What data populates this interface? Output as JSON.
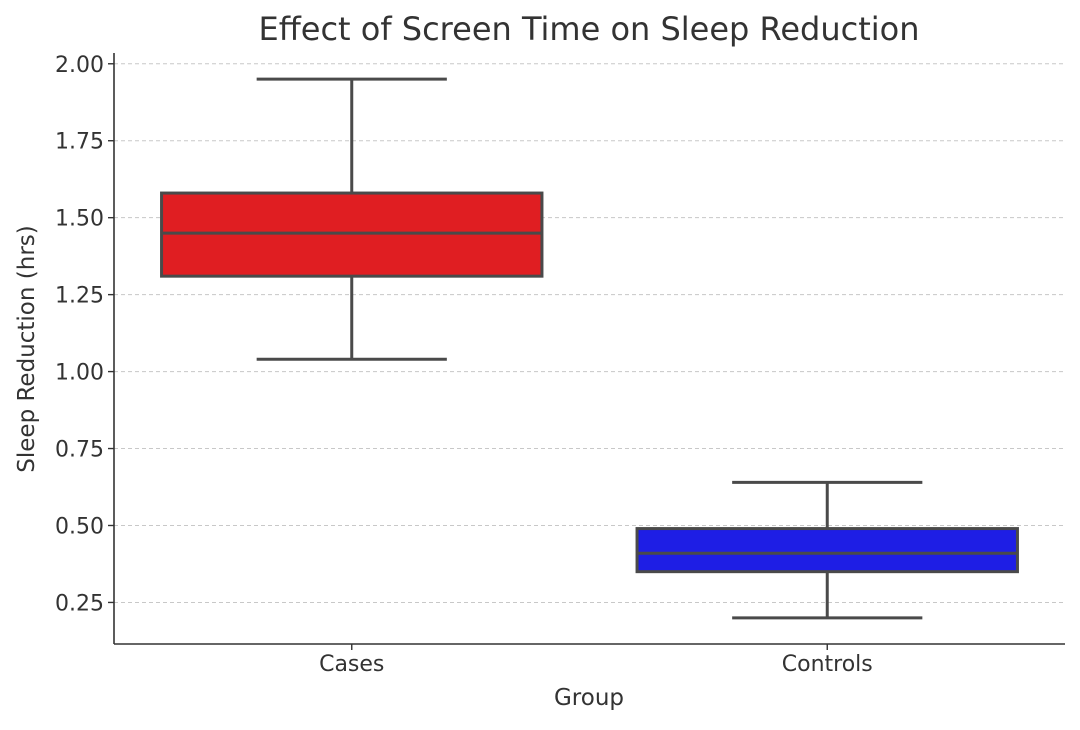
{
  "chart_data": {
    "type": "box",
    "title": "Effect of Screen Time on Sleep Reduction",
    "xlabel": "Group",
    "ylabel": "Sleep Reduction (hrs)",
    "ylim": [
      0.115,
      2.035
    ],
    "yticks": [
      0.25,
      0.5,
      0.75,
      1.0,
      1.25,
      1.5,
      1.75,
      2.0
    ],
    "ytick_labels": [
      "0.25",
      "0.50",
      "0.75",
      "1.00",
      "1.25",
      "1.50",
      "1.75",
      "2.00"
    ],
    "grid": "horizontal dashed",
    "categories": [
      "Cases",
      "Controls"
    ],
    "boxes": [
      {
        "category": "Cases",
        "whisker_low": 1.04,
        "q1": 1.31,
        "median": 1.45,
        "q3": 1.58,
        "whisker_high": 1.95,
        "color": "#e01e22"
      },
      {
        "category": "Controls",
        "whisker_low": 0.2,
        "q1": 0.35,
        "median": 0.41,
        "q3": 0.49,
        "whisker_high": 0.64,
        "color": "#1e1ee5"
      }
    ]
  }
}
